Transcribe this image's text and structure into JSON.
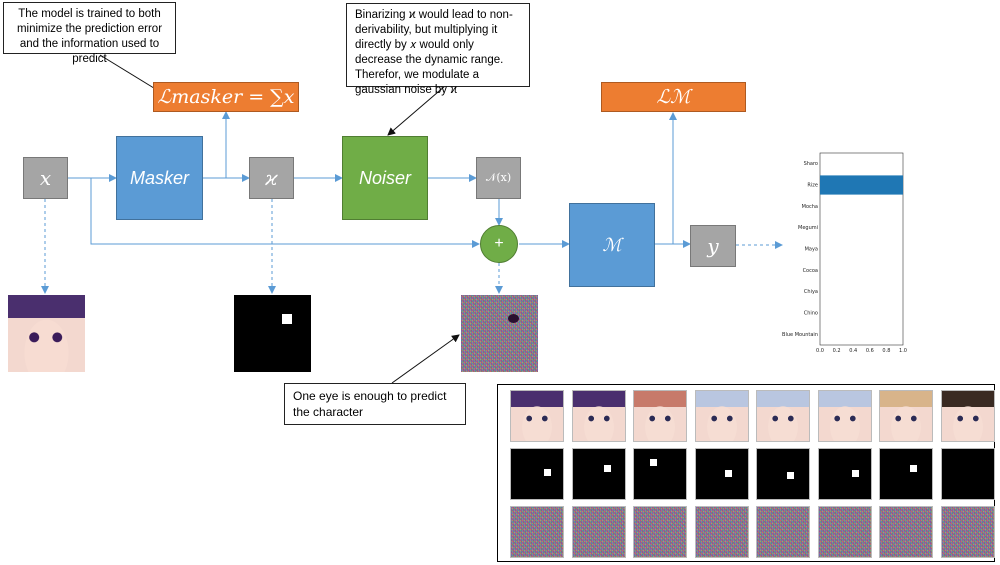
{
  "nodes": {
    "input_x": "𝑥",
    "masker": "Masker",
    "mask_symbol": "ϰ",
    "noiser": "Noiser",
    "noise_fn": "𝒩(x)",
    "sum": "+",
    "model": "ℳ",
    "output_y": "𝑦",
    "loss_masker": "ℒmasker = ∑𝑥",
    "loss_model": "ℒℳ"
  },
  "callouts": {
    "objective": "The model is trained to both minimize the prediction error and the information used to predict",
    "noise_note": "Binarizing ϰ would lead to non-derivability, but multiplying it directly by 𝑥 would only decrease the dynamic range. Therefor, we modulate a gaussian noise by ϰ",
    "eye_note": "One eye is enough to predict the character"
  },
  "colors": {
    "blue": "#5b9bd5",
    "green": "#70ad47",
    "grey": "#a5a5a5",
    "orange": "#ed7d31",
    "arrow": "#5b9bd5",
    "bar": "#1f77b4"
  },
  "chart_data": {
    "type": "bar",
    "orientation": "horizontal",
    "categories": [
      "Sharo",
      "Rize",
      "Mocha",
      "Megumi",
      "Maya",
      "Cocoa",
      "Chiya",
      "Chino",
      "Blue Mountain"
    ],
    "values": [
      0,
      1.0,
      0,
      0,
      0,
      0,
      0,
      0,
      0
    ],
    "xlim": [
      0,
      1.0
    ],
    "xticks": [
      "0.0",
      "0.2",
      "0.4",
      "0.6",
      "0.8",
      "1.0"
    ]
  },
  "grid": {
    "columns": 8,
    "rows": [
      "input",
      "mask",
      "noised"
    ]
  }
}
